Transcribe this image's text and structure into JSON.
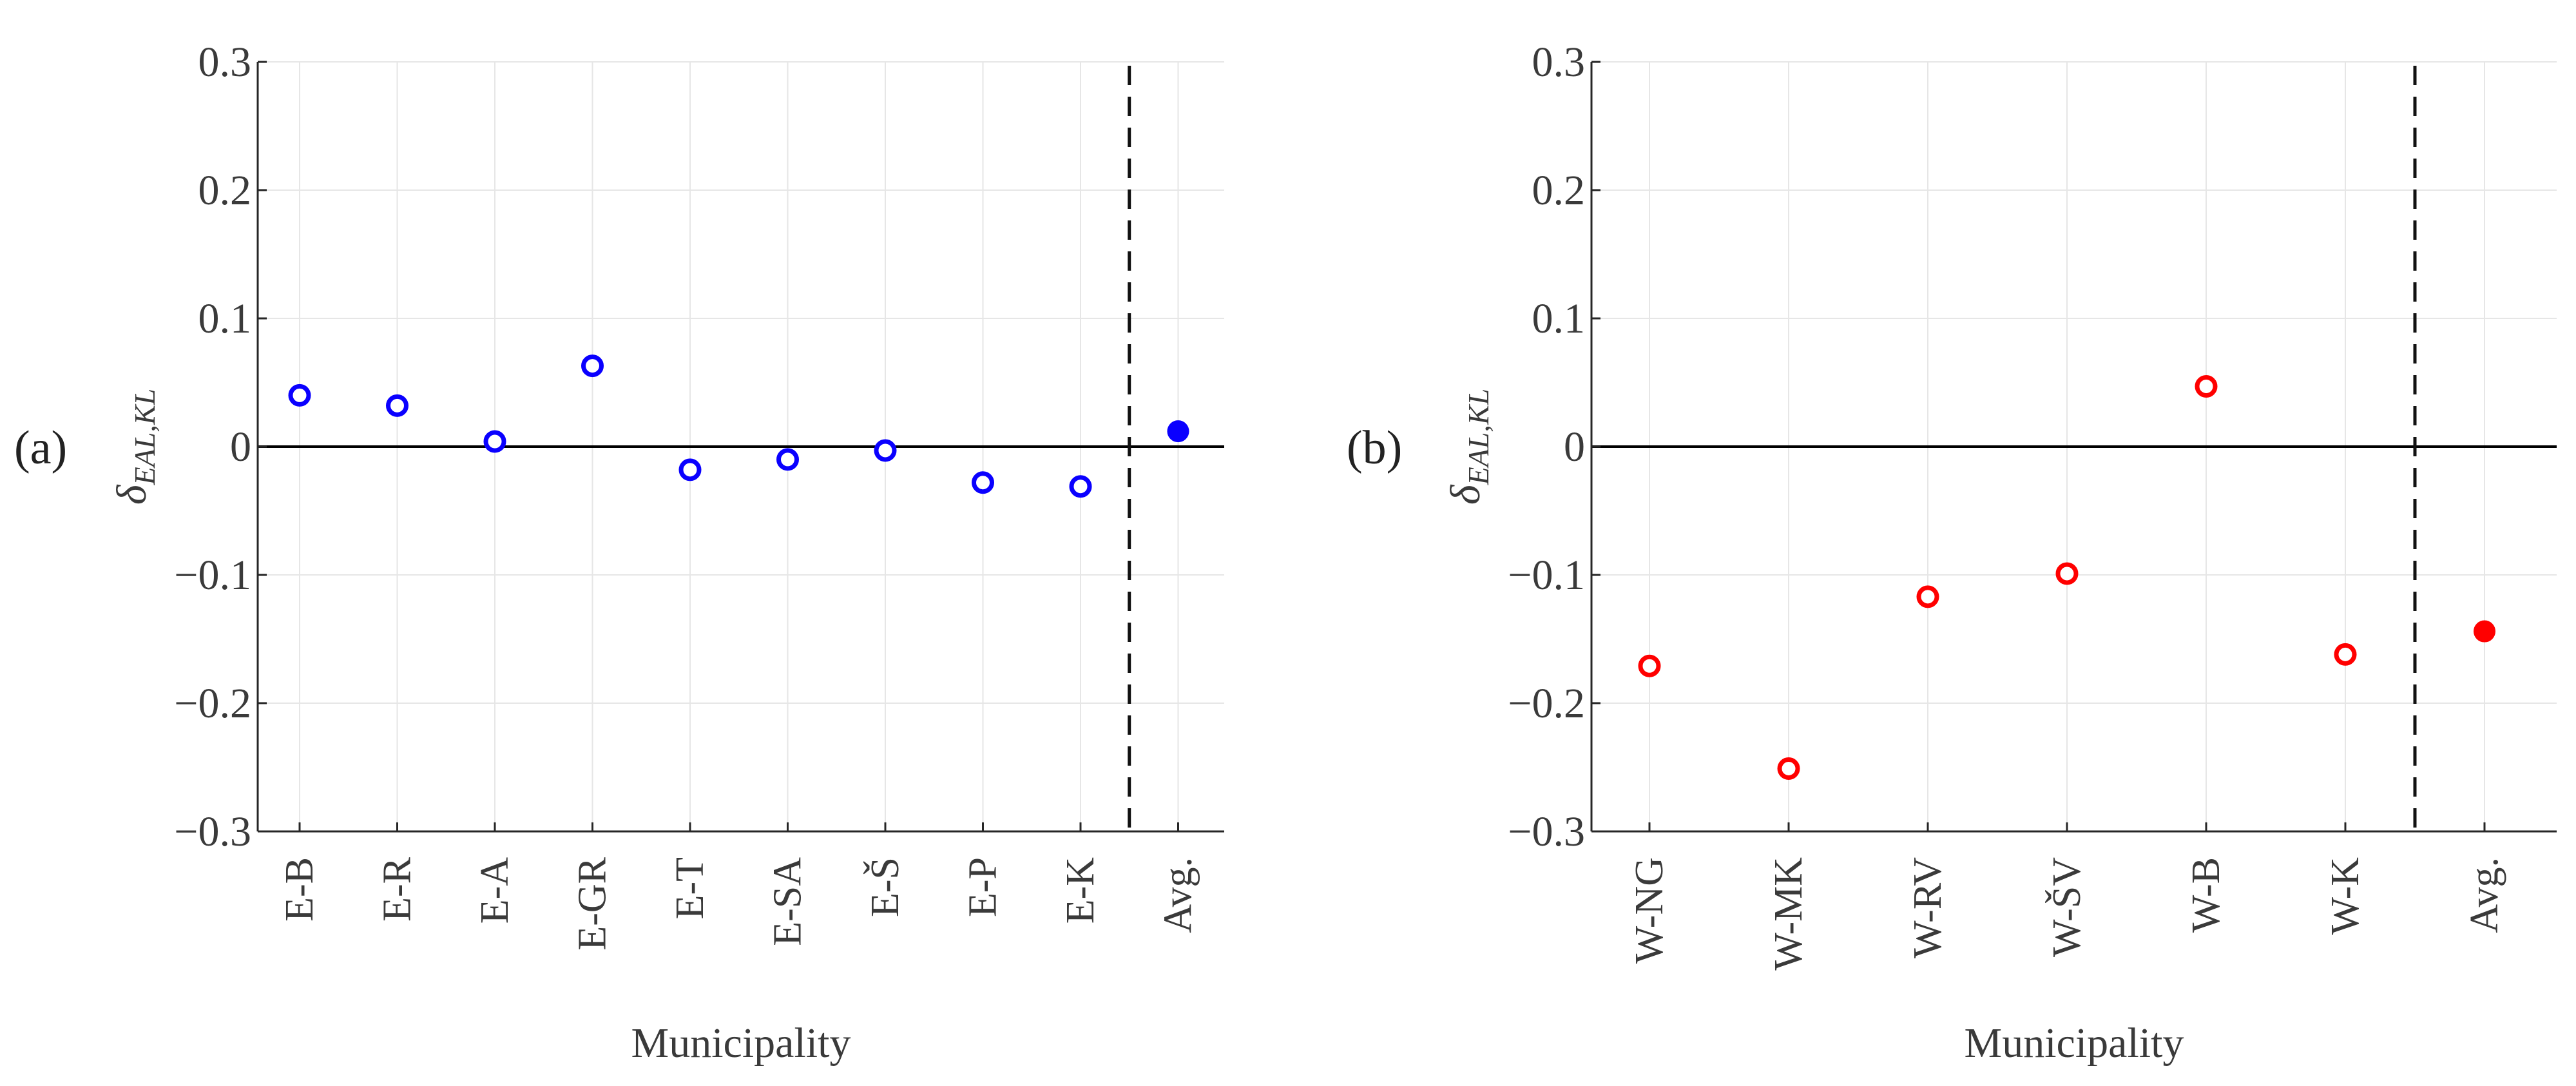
{
  "chart_data": [
    {
      "panel_label": "(a)",
      "type": "scatter",
      "xlabel": "Municipality",
      "ylabel_symbol": "δ",
      "ylabel_subscript": "EAL,KL",
      "ylim": [
        -0.3,
        0.3
      ],
      "yticks": [
        -0.3,
        -0.2,
        -0.1,
        0,
        0.1,
        0.2,
        0.3
      ],
      "ytick_labels": [
        "−0.3",
        "−0.2",
        "−0.1",
        "0",
        "0.1",
        "0.2",
        "0.3"
      ],
      "grid": true,
      "color": "#0a00ff",
      "categories": [
        "E-B",
        "E-R",
        "E-A",
        "E-GR",
        "E-T",
        "E-SA",
        "E-Š",
        "E-P",
        "E-K",
        "Avg."
      ],
      "values": [
        0.04,
        0.032,
        0.004,
        0.063,
        -0.018,
        -0.01,
        -0.003,
        -0.028,
        -0.031,
        0.012
      ],
      "filled_category": "Avg.",
      "separator_before": "Avg."
    },
    {
      "panel_label": "(b)",
      "type": "scatter",
      "xlabel": "Municipality",
      "ylabel_symbol": "δ",
      "ylabel_subscript": "EAL,KL",
      "ylim": [
        -0.3,
        0.3
      ],
      "yticks": [
        -0.3,
        -0.2,
        -0.1,
        0,
        0.1,
        0.2,
        0.3
      ],
      "ytick_labels": [
        "−0.3",
        "−0.2",
        "−0.1",
        "0",
        "0.1",
        "0.2",
        "0.3"
      ],
      "grid": true,
      "color": "#ff0000",
      "categories": [
        "W-NG",
        "W-MK",
        "W-RV",
        "W-ŠV",
        "W-B",
        "W-K",
        "Avg."
      ],
      "values": [
        -0.171,
        -0.251,
        -0.117,
        -0.099,
        0.047,
        -0.162,
        -0.144
      ],
      "filled_category": "Avg.",
      "separator_before": "Avg."
    }
  ]
}
